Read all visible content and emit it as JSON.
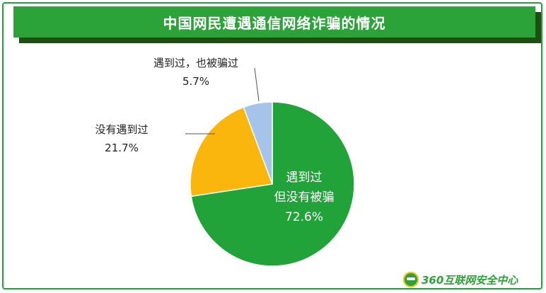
{
  "title": "中国网民遭遇通信网络诈骗的情况",
  "logo_text": "360互联网安全中心",
  "colors": {
    "green": "#21a339",
    "orange": "#fab60d",
    "lightblue": "#a6c4ea"
  },
  "chart_data": {
    "type": "pie",
    "title": "中国网民遭遇通信网络诈骗的情况",
    "slices": [
      {
        "label_lines": [
          "遇到过",
          "但没有被骗"
        ],
        "value": 72.6,
        "value_label": "72.6%",
        "color": "#21a339"
      },
      {
        "label_lines": [
          "没有遇到过"
        ],
        "value": 21.7,
        "value_label": "21.7%",
        "color": "#fab60d"
      },
      {
        "label_lines": [
          "遇到过，也被骗过"
        ],
        "value": 5.7,
        "value_label": "5.7%",
        "color": "#a6c4ea"
      }
    ]
  }
}
